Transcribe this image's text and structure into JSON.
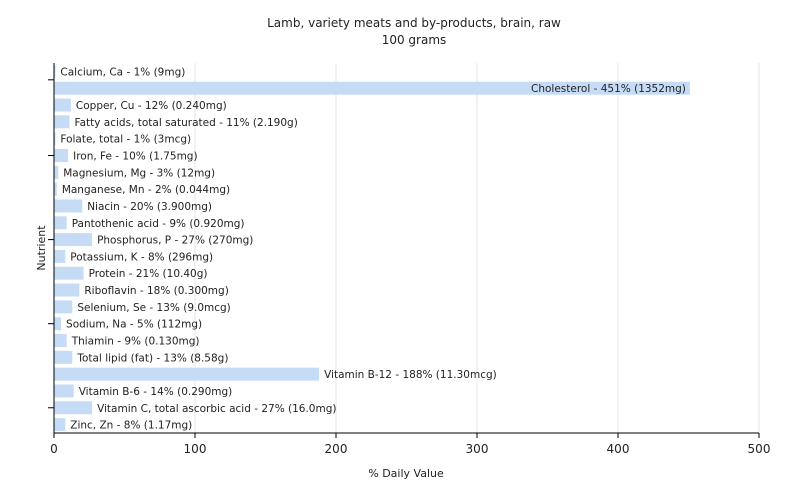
{
  "chart_data": {
    "type": "bar",
    "orientation": "horizontal",
    "title": "Lamb, variety meats and by-products, brain, raw",
    "subtitle": "100 grams",
    "xlabel": "% Daily Value",
    "ylabel": "Nutrient",
    "xlim": [
      0,
      500
    ],
    "xticks": [
      0,
      100,
      200,
      300,
      400,
      500
    ],
    "grid": true,
    "bar_color": "#c6dcf6",
    "bars": [
      {
        "label": "Calcium, Ca - 1% (9mg)",
        "value": 1
      },
      {
        "label": "Cholesterol - 451% (1352mg)",
        "value": 451
      },
      {
        "label": "Copper, Cu - 12% (0.240mg)",
        "value": 12
      },
      {
        "label": "Fatty acids, total saturated - 11% (2.190g)",
        "value": 11
      },
      {
        "label": "Folate, total - 1% (3mcg)",
        "value": 1
      },
      {
        "label": "Iron, Fe - 10% (1.75mg)",
        "value": 10
      },
      {
        "label": "Magnesium, Mg - 3% (12mg)",
        "value": 3
      },
      {
        "label": "Manganese, Mn - 2% (0.044mg)",
        "value": 2
      },
      {
        "label": "Niacin - 20% (3.900mg)",
        "value": 20
      },
      {
        "label": "Pantothenic acid - 9% (0.920mg)",
        "value": 9
      },
      {
        "label": "Phosphorus, P - 27% (270mg)",
        "value": 27
      },
      {
        "label": "Potassium, K - 8% (296mg)",
        "value": 8
      },
      {
        "label": "Protein - 21% (10.40g)",
        "value": 21
      },
      {
        "label": "Riboflavin - 18% (0.300mg)",
        "value": 18
      },
      {
        "label": "Selenium, Se - 13% (9.0mcg)",
        "value": 13
      },
      {
        "label": "Sodium, Na - 5% (112mg)",
        "value": 5
      },
      {
        "label": "Thiamin - 9% (0.130mg)",
        "value": 9
      },
      {
        "label": "Total lipid (fat) - 13% (8.58g)",
        "value": 13
      },
      {
        "label": "Vitamin B-12 - 188% (11.30mcg)",
        "value": 188
      },
      {
        "label": "Vitamin B-6 - 14% (0.290mg)",
        "value": 14
      },
      {
        "label": "Vitamin C, total ascorbic acid - 27% (16.0mg)",
        "value": 27
      },
      {
        "label": "Zinc, Zn - 8% (1.17mg)",
        "value": 8
      }
    ]
  }
}
